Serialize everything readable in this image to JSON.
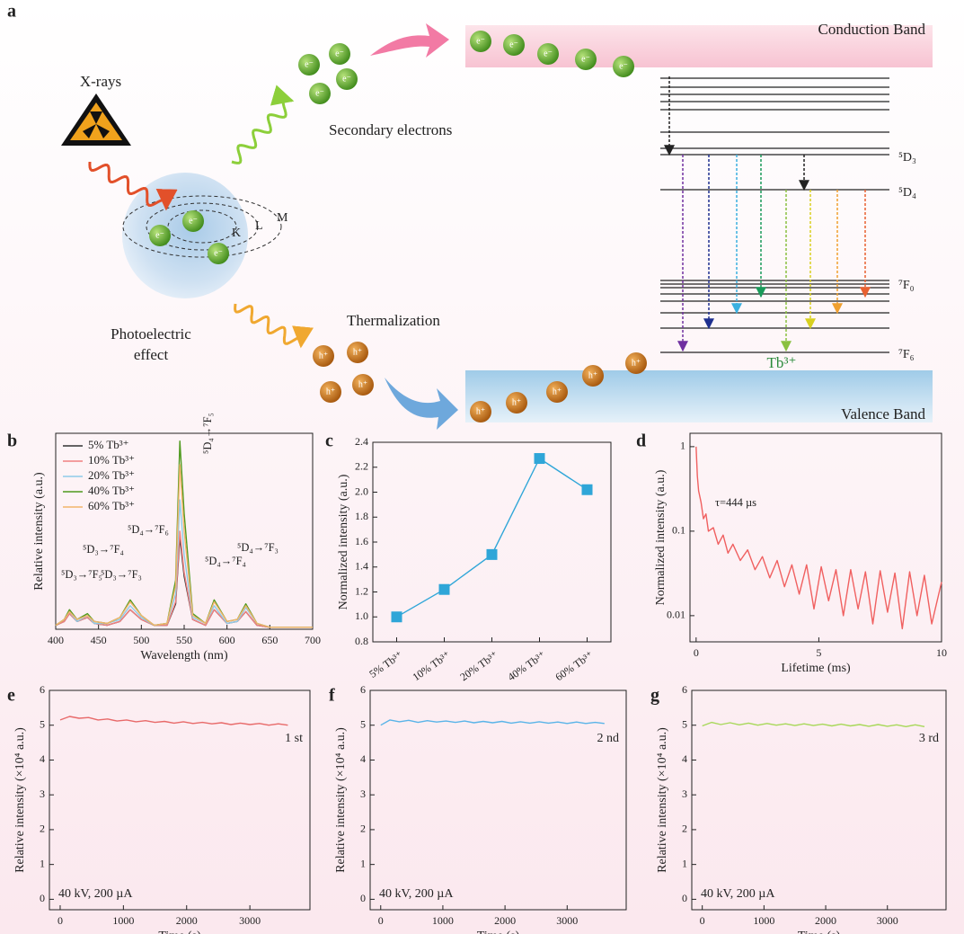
{
  "diagram": {
    "label": "a",
    "xrays": "X-rays",
    "secondary": "Secondary electrons",
    "conduction": "Conduction Band",
    "photoelectric": [
      "Photoelectric",
      "effect"
    ],
    "thermalization": "Thermalization",
    "valence": "Valence Band",
    "ion": "Tb³⁺",
    "levels": [
      "⁵D₃",
      "⁵D₄",
      "⁷F₀",
      "⁷F₆"
    ],
    "shells": [
      "K",
      "L",
      "M"
    ],
    "electron": "e⁻",
    "hole": "h⁺"
  },
  "chart_data": [
    {
      "type": "line",
      "label": "b",
      "x_label": "Wavelength (nm)",
      "y_label": "Relative intensity (a.u.)",
      "legend": "upper left",
      "x": [
        400,
        410,
        416,
        425,
        437,
        445,
        460,
        475,
        487,
        500,
        515,
        530,
        540,
        545,
        550,
        560,
        575,
        585,
        600,
        612,
        622,
        635,
        650,
        675,
        700
      ],
      "series": [
        {
          "name": "5% Tb³⁺",
          "color": "#333333",
          "values": [
            0.2,
            0.4,
            0.8,
            0.4,
            0.6,
            0.3,
            0.2,
            0.4,
            1.0,
            0.5,
            0.2,
            0.2,
            1.3,
            4.7,
            2.7,
            0.5,
            0.2,
            1.0,
            0.3,
            0.4,
            0.9,
            0.2,
            0.1,
            0.1,
            0.1
          ]
        },
        {
          "name": "10% Tb³⁺",
          "color": "#f08080",
          "values": [
            0.2,
            0.4,
            0.8,
            0.4,
            0.6,
            0.3,
            0.2,
            0.4,
            1.0,
            0.5,
            0.2,
            0.2,
            1.4,
            5.0,
            2.9,
            0.5,
            0.2,
            1.0,
            0.3,
            0.4,
            0.9,
            0.2,
            0.1,
            0.1,
            0.1
          ]
        },
        {
          "name": "20% Tb³⁺",
          "color": "#8fcbe8",
          "values": [
            0.2,
            0.5,
            0.9,
            0.4,
            0.7,
            0.3,
            0.3,
            0.5,
            1.2,
            0.6,
            0.2,
            0.3,
            1.8,
            6.6,
            3.8,
            0.6,
            0.3,
            1.2,
            0.3,
            0.4,
            1.1,
            0.3,
            0.1,
            0.1,
            0.1
          ]
        },
        {
          "name": "40% Tb³⁺",
          "color": "#4f9a1f",
          "values": [
            0.2,
            0.5,
            1.0,
            0.5,
            0.8,
            0.4,
            0.3,
            0.6,
            1.5,
            0.7,
            0.2,
            0.3,
            2.5,
            9.6,
            5.9,
            0.8,
            0.3,
            1.5,
            0.4,
            0.5,
            1.3,
            0.3,
            0.1,
            0.1,
            0.1
          ]
        },
        {
          "name": "60% Tb³⁺",
          "color": "#f2b46a",
          "values": [
            0.2,
            0.5,
            0.9,
            0.5,
            0.7,
            0.4,
            0.3,
            0.6,
            1.4,
            0.7,
            0.2,
            0.3,
            2.2,
            8.4,
            5.0,
            0.7,
            0.3,
            1.4,
            0.4,
            0.5,
            1.2,
            0.3,
            0.1,
            0.1,
            0.1
          ]
        }
      ],
      "xlim": [
        400,
        700
      ],
      "xticks": [
        400,
        450,
        500,
        550,
        600,
        650,
        700
      ],
      "ylim": [
        0,
        10
      ],
      "annotations": [
        "⁵D₃→⁷F₅",
        "⁵D₃→⁷F₄",
        "⁵D₃→⁷F₃",
        "⁵D₄→⁷F₆",
        "⁵D₄→⁷F₅",
        "⁵D₄→⁷F₄",
        "⁵D₄→⁷F₃"
      ]
    },
    {
      "type": "line",
      "label": "c",
      "y_label": "Normalized intensity (a.u.)",
      "markers": true,
      "categories": [
        "5% Tb³⁺",
        "10% Tb³⁺",
        "20% Tb³⁺",
        "40% Tb³⁺",
        "60% Tb³⁺"
      ],
      "series": [
        {
          "color": "#2fa6d8",
          "values": [
            1.0,
            1.22,
            1.5,
            2.27,
            2.02
          ]
        }
      ],
      "ylim": [
        0.8,
        2.4
      ],
      "yticks": [
        0.8,
        {
          "value": 1,
          "label": "1.0"
        },
        1.2,
        1.4,
        1.6,
        1.8,
        {
          "value": 2,
          "label": "2.0"
        },
        2.2,
        2.4
      ]
    },
    {
      "type": "line",
      "label": "d",
      "x_label": "Lifetime (ms)",
      "y_label": "Normalized intensity (a.u.)",
      "log_y": true,
      "x": [
        0,
        0.05,
        0.1,
        0.2,
        0.3,
        0.4,
        0.5,
        0.7,
        0.9,
        1.1,
        1.3,
        1.5,
        1.8,
        2.1,
        2.4,
        2.7,
        3.0,
        3.3,
        3.6,
        3.9,
        4.2,
        4.5,
        4.8,
        5.1,
        5.4,
        5.7,
        6.0,
        6.3,
        6.6,
        6.9,
        7.2,
        7.5,
        7.8,
        8.1,
        8.4,
        8.7,
        9.0,
        9.3,
        9.6,
        10.0
      ],
      "series": [
        {
          "color": "#f06060",
          "values": [
            1.0,
            0.45,
            0.3,
            0.22,
            0.14,
            0.16,
            0.1,
            0.11,
            0.07,
            0.09,
            0.055,
            0.07,
            0.045,
            0.06,
            0.035,
            0.05,
            0.028,
            0.045,
            0.022,
            0.04,
            0.018,
            0.04,
            0.012,
            0.038,
            0.015,
            0.035,
            0.01,
            0.035,
            0.012,
            0.033,
            0.008,
            0.034,
            0.011,
            0.032,
            0.007,
            0.033,
            0.01,
            0.03,
            0.008,
            0.025
          ]
        }
      ],
      "xlim": [
        -0.25,
        10
      ],
      "xticks": [
        0,
        5,
        10
      ],
      "ylim": [
        0.0049,
        1.44
      ],
      "yticks": [
        0.01,
        0.1,
        1
      ],
      "annotations": [
        "τ=444 µs"
      ]
    },
    {
      "type": "line",
      "label": "e",
      "x_label": "Time (s)",
      "y_label": "Relative intensity (×10⁴ a.u.)",
      "x": [
        0,
        150,
        300,
        450,
        600,
        750,
        900,
        1050,
        1200,
        1350,
        1500,
        1650,
        1800,
        1950,
        2100,
        2250,
        2400,
        2550,
        2700,
        2850,
        3000,
        3150,
        3300,
        3450,
        3600
      ],
      "series": [
        {
          "color": "#e86a6a",
          "values": [
            5.15,
            5.25,
            5.2,
            5.22,
            5.15,
            5.18,
            5.12,
            5.15,
            5.1,
            5.13,
            5.08,
            5.11,
            5.06,
            5.1,
            5.05,
            5.08,
            5.04,
            5.07,
            5.02,
            5.06,
            5.02,
            5.05,
            5.0,
            5.04,
            5.0
          ]
        }
      ],
      "xlim": [
        -170,
        3950
      ],
      "xticks": [
        0,
        1000,
        2000,
        3000
      ],
      "ylim": [
        -0.3,
        6
      ],
      "yticks": [
        0,
        1,
        2,
        3,
        4,
        5,
        6
      ],
      "annotations": [
        "1 st",
        "40 kV, 200 µA"
      ]
    },
    {
      "type": "line",
      "label": "f",
      "x_label": "Time (s)",
      "y_label": "Relative intensity (×10⁴ a.u.)",
      "x": [
        0,
        150,
        300,
        450,
        600,
        750,
        900,
        1050,
        1200,
        1350,
        1500,
        1650,
        1800,
        1950,
        2100,
        2250,
        2400,
        2550,
        2700,
        2850,
        3000,
        3150,
        3300,
        3450,
        3600
      ],
      "series": [
        {
          "color": "#5ab4e8",
          "values": [
            5.0,
            5.15,
            5.1,
            5.14,
            5.08,
            5.13,
            5.09,
            5.12,
            5.08,
            5.12,
            5.07,
            5.11,
            5.07,
            5.11,
            5.06,
            5.1,
            5.06,
            5.1,
            5.06,
            5.09,
            5.05,
            5.09,
            5.05,
            5.08,
            5.05
          ]
        }
      ],
      "xlim": [
        -170,
        3950
      ],
      "xticks": [
        0,
        1000,
        2000,
        3000
      ],
      "ylim": [
        -0.3,
        6
      ],
      "yticks": [
        0,
        1,
        2,
        3,
        4,
        5,
        6
      ],
      "annotations": [
        "2 nd",
        "40 kV, 200 µA"
      ]
    },
    {
      "type": "line",
      "label": "g",
      "x_label": "Time (s)",
      "y_label": "Relative intensity (×10⁴ a.u.)",
      "x": [
        0,
        150,
        300,
        450,
        600,
        750,
        900,
        1050,
        1200,
        1350,
        1500,
        1650,
        1800,
        1950,
        2100,
        2250,
        2400,
        2550,
        2700,
        2850,
        3000,
        3150,
        3300,
        3450,
        3600
      ],
      "series": [
        {
          "color": "#a8d85a",
          "values": [
            4.98,
            5.08,
            5.02,
            5.07,
            5.01,
            5.06,
            5.0,
            5.05,
            5.0,
            5.04,
            4.99,
            5.04,
            4.99,
            5.03,
            4.98,
            5.03,
            4.98,
            5.02,
            4.97,
            5.02,
            4.97,
            5.01,
            4.96,
            5.01,
            4.96
          ]
        }
      ],
      "xlim": [
        -170,
        3950
      ],
      "xticks": [
        0,
        1000,
        2000,
        3000
      ],
      "ylim": [
        -0.3,
        6
      ],
      "yticks": [
        0,
        1,
        2,
        3,
        4,
        5,
        6
      ],
      "annotations": [
        "3 rd",
        "40 kV, 200 µA"
      ]
    }
  ]
}
